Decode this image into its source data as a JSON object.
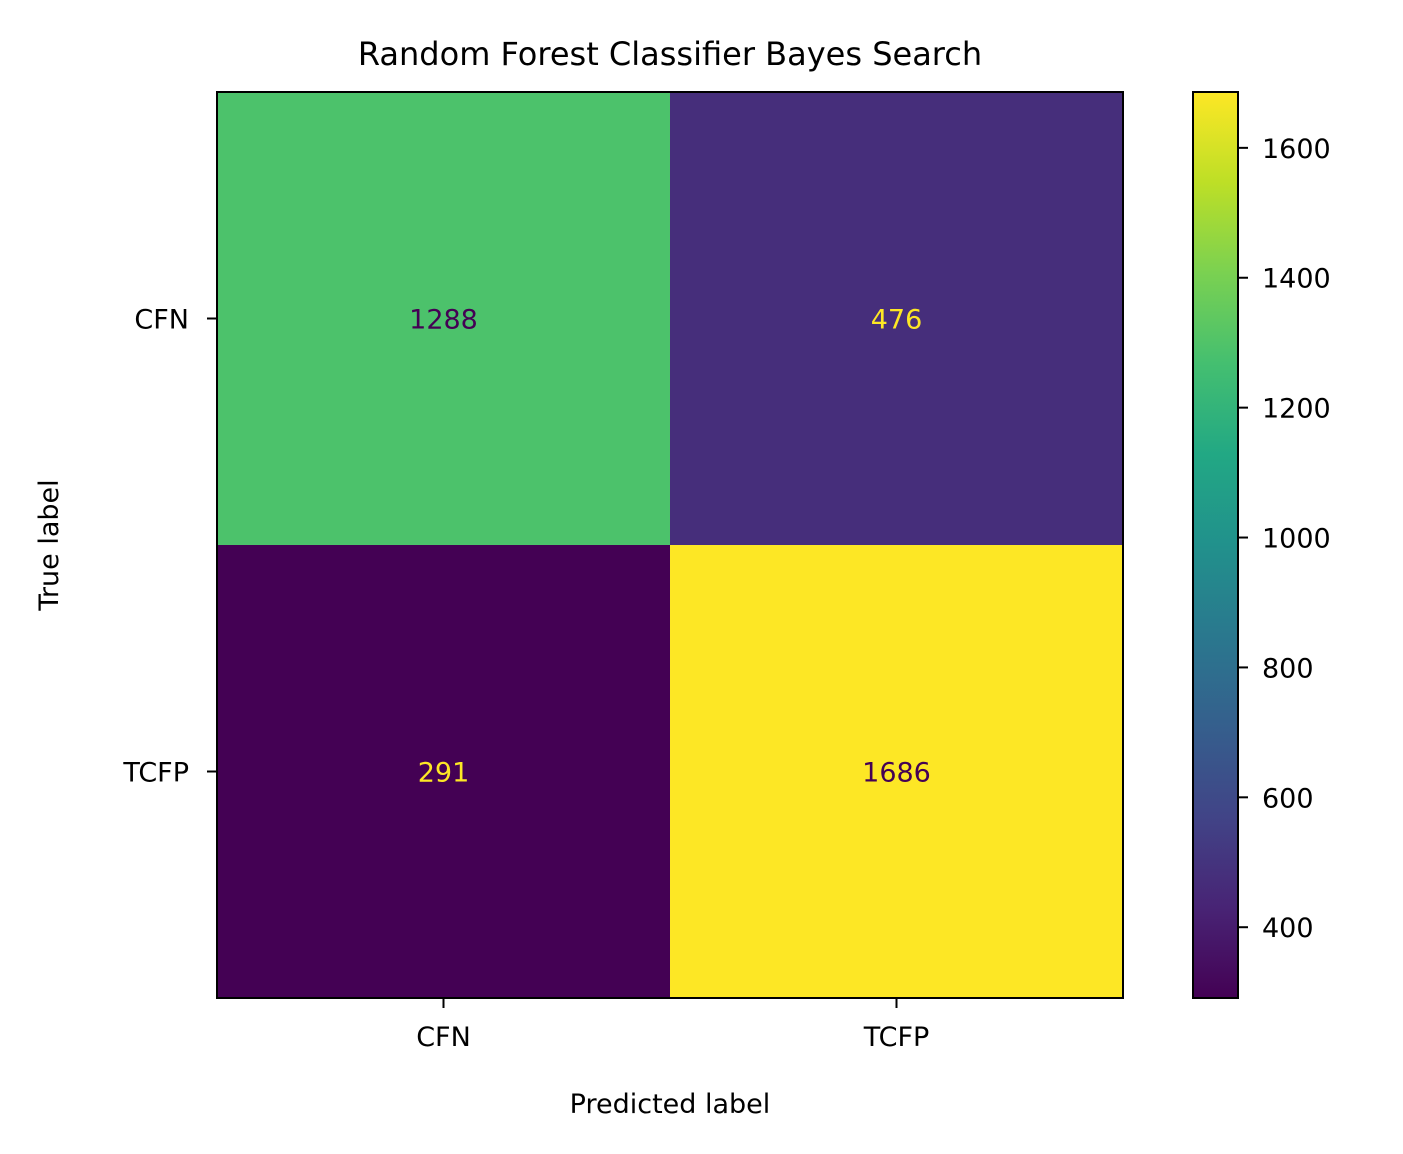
{
  "chart_data": {
    "type": "heatmap",
    "title": "Random Forest Classifier Bayes Search",
    "xlabel": "Predicted label",
    "ylabel": "True label",
    "x_categories": [
      "CFN",
      "TCFP"
    ],
    "y_categories": [
      "CFN",
      "TCFP"
    ],
    "values": [
      [
        1288,
        476
      ],
      [
        291,
        1686
      ]
    ],
    "colormap": "viridis",
    "colorbar": {
      "range": [
        291,
        1686
      ],
      "ticks": [
        400,
        600,
        800,
        1000,
        1200,
        1400,
        1600
      ]
    },
    "colors": {
      "text_on_dark": "#fde725",
      "text_on_light": "#440154"
    }
  }
}
